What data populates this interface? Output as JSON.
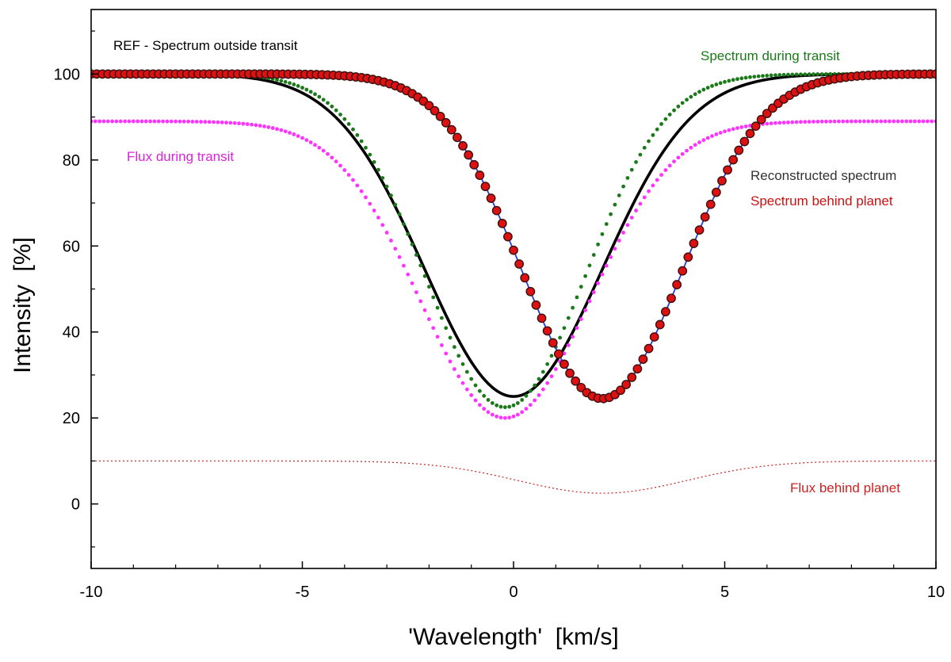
{
  "chart_data": {
    "type": "line",
    "title": "",
    "xlabel": "'Wavelength'  [km/s]",
    "ylabel": "Intensity  [%]",
    "xlim": [
      -10,
      10
    ],
    "ylim": [
      -15,
      115
    ],
    "xticks": [
      -10,
      -5,
      0,
      5,
      10
    ],
    "yticks": [
      0,
      20,
      40,
      60,
      80,
      100
    ],
    "x_tick_labels": [
      "-10",
      "-5",
      "0",
      "5",
      "10"
    ],
    "y_tick_labels": [
      "0",
      "20",
      "40",
      "60",
      "80",
      "100"
    ],
    "grid": false,
    "series": [
      {
        "name": "REF - Spectrum outside transit",
        "style": "solid",
        "color": "#000000",
        "model": {
          "baseline": 100,
          "depth": 75,
          "center": 0,
          "sigma": 2.1
        }
      },
      {
        "name": "Spectrum during transit",
        "style": "dotted",
        "color": "#1a7a1a",
        "model": {
          "baseline": 100,
          "depth": 77.5,
          "center": -0.2,
          "sigma": 1.9
        }
      },
      {
        "name": "Flux during transit",
        "style": "dotted",
        "color": "#ff33ff",
        "model": {
          "baseline": 89,
          "depth": 69,
          "center": -0.2,
          "sigma": 2.0
        }
      },
      {
        "name": "Reconstructed spectrum",
        "style": "solid",
        "color": "#2a3dd6",
        "model": {
          "baseline": 100,
          "depth": 75.5,
          "center": 2.1,
          "sigma": 1.9
        }
      },
      {
        "name": "Spectrum behind planet",
        "style": "markers",
        "color": "#dd1111",
        "model": {
          "baseline": 100,
          "depth": 75.5,
          "center": 2.1,
          "sigma": 1.9
        }
      },
      {
        "name": "Flux behind planet",
        "style": "dashed-thin",
        "color": "#cc2222",
        "model": {
          "baseline": 10,
          "depth": 7.5,
          "center": 2.1,
          "sigma": 2.0
        }
      }
    ],
    "annotations": [
      {
        "key": "ref",
        "text": "REF - Spectrum outside transit",
        "color": "#000000"
      },
      {
        "key": "during",
        "text": "Spectrum during transit",
        "color": "#1a7a1a"
      },
      {
        "key": "flux_during",
        "text": "Flux during transit",
        "color": "#dd22dd"
      },
      {
        "key": "reconstructed",
        "text": "Reconstructed spectrum",
        "color": "#333333"
      },
      {
        "key": "behind",
        "text": "Spectrum behind planet",
        "color": "#cc1111"
      },
      {
        "key": "flux_behind",
        "text": "Flux behind planet",
        "color": "#cc2222"
      }
    ]
  }
}
